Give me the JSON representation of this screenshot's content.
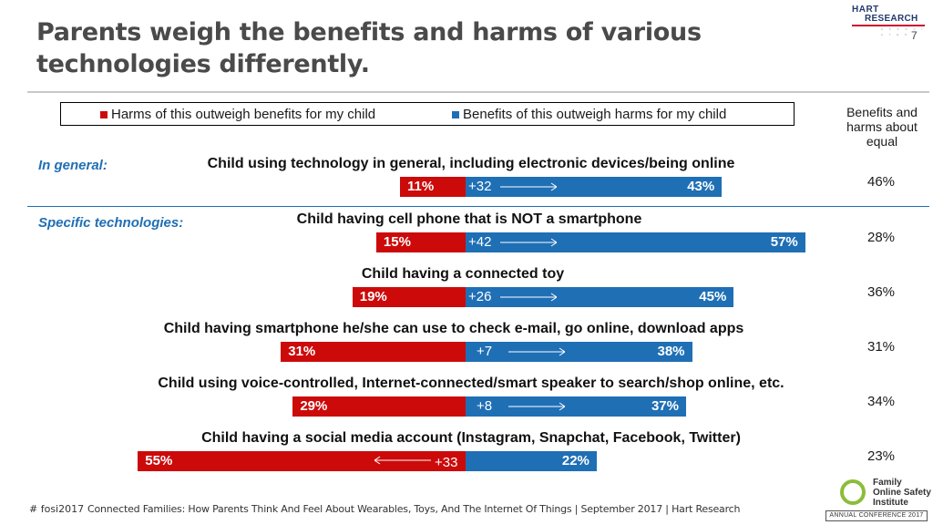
{
  "header": {
    "title": "Parents weigh the benefits and harms of various technologies differently.",
    "page_number": "7",
    "logo_top": "HART",
    "logo_bottom": "RESEARCH",
    "logo_assoc": "A S S O C I A T E S"
  },
  "legend": {
    "harm": "Harms of this outweigh benefits for my child",
    "benefit": "Benefits of this outweigh harms for my child",
    "equal": "Benefits and harms about equal"
  },
  "sections": {
    "general": "In general:",
    "specific": "Specific technologies:"
  },
  "colors": {
    "harm": "#cc0a0a",
    "benefit": "#1f6fb5",
    "section": "#1f6fb5",
    "title": "#4a4a4a"
  },
  "chart_data": {
    "type": "bar",
    "title": "Parents weigh the benefits and harms of various technologies differently.",
    "categories": [
      "Child using technology in general, including electronic devices/being online",
      "Child having cell phone that is NOT a smartphone",
      "Child having a connected toy",
      "Child having smartphone he/she can use to check e-mail, go online, download apps",
      "Child using voice-controlled, Internet-connected/smart speaker to search/shop online, etc.",
      "Child having a social media account (Instagram, Snapchat, Facebook, Twitter)"
    ],
    "series": [
      {
        "name": "Harms of this outweigh benefits for my child",
        "values": [
          11,
          15,
          19,
          31,
          29,
          55
        ]
      },
      {
        "name": "Benefits of this outweigh harms for my child",
        "values": [
          43,
          57,
          45,
          38,
          37,
          22
        ]
      },
      {
        "name": "Benefits and harms about equal",
        "values": [
          46,
          28,
          36,
          31,
          34,
          23
        ]
      }
    ],
    "differences": [
      "+32",
      "+42",
      "+26",
      "+7",
      "+8",
      "+33"
    ],
    "difference_direction": [
      "benefit",
      "benefit",
      "benefit",
      "benefit",
      "benefit",
      "harm"
    ],
    "value_labels": {
      "harm": [
        "11%",
        "15%",
        "19%",
        "31%",
        "29%",
        "55%"
      ],
      "benefit": [
        "43%",
        "57%",
        "45%",
        "38%",
        "37%",
        "22%"
      ],
      "equal": [
        "46%",
        "28%",
        "36%",
        "31%",
        "34%",
        "23%"
      ]
    },
    "xlabel": "",
    "ylabel": "",
    "xlim": [
      0,
      100
    ]
  },
  "footer": {
    "hashtag": "# fosi2017",
    "source": "Connected Families: How Parents Think And Feel About Wearables, Toys, And The Internet Of Things | September 2017 | Hart Research",
    "fosi_line1": "Family",
    "fosi_line2": "Online Safety",
    "fosi_line3": "Institute",
    "fosi_conf": "ANNUAL CONFERENCE 2017"
  }
}
